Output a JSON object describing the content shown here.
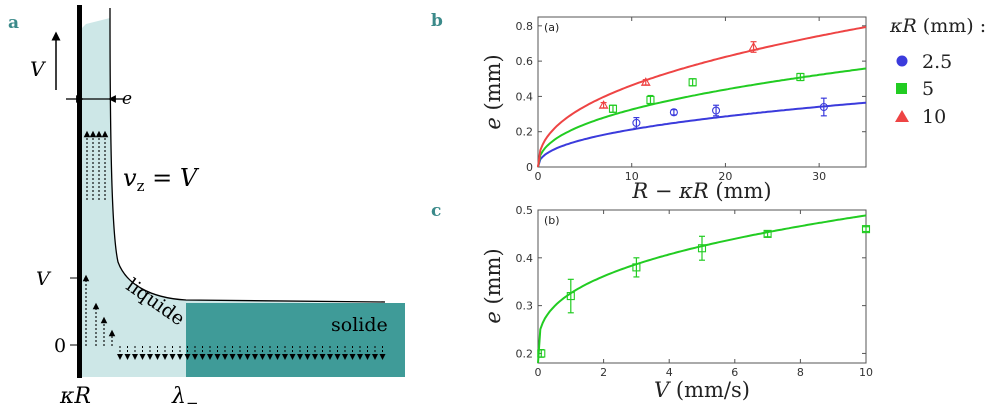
{
  "panel_labels": {
    "a": "a",
    "b": "b",
    "c": "c"
  },
  "schematic": {
    "velocity_label": "V",
    "thickness_label": "e",
    "vz_label": "v_z = V",
    "y_tick_v": "V",
    "y_tick_zero": "0",
    "liquid_label": "liquide",
    "solid_label": "solide",
    "x_label_kr": "κR",
    "x_label_lambda": "λ_−"
  },
  "legend": {
    "title": "κR (mm)  :",
    "items": [
      {
        "label": "2.5",
        "color": "#3b3bdc",
        "marker": "circle"
      },
      {
        "label": "5",
        "color": "#22cc22",
        "marker": "square"
      },
      {
        "label": "10",
        "color": "#ee4444",
        "marker": "triangle"
      }
    ]
  },
  "chart_data": [
    {
      "type": "scatter",
      "panel_tag": "(a)",
      "xlabel": "R − κR (mm)",
      "ylabel": "e (mm)",
      "xlim": [
        0,
        35
      ],
      "ylim": [
        0,
        0.85
      ],
      "xticks": [
        "0",
        "10",
        "20",
        "30"
      ],
      "yticks": [
        "0",
        "0.2",
        "0.4",
        "0.6",
        "0.8"
      ],
      "series": [
        {
          "name": "2.5",
          "color": "#3b3bdc",
          "marker": "circle",
          "points": [
            [
              10.5,
              0.25,
              0.03
            ],
            [
              14.5,
              0.31,
              0.015
            ],
            [
              19,
              0.32,
              0.03
            ],
            [
              30.5,
              0.34,
              0.05
            ]
          ],
          "fit_amp": 0.079
        },
        {
          "name": "5",
          "color": "#22cc22",
          "marker": "square",
          "points": [
            [
              8,
              0.33,
              0.02
            ],
            [
              12,
              0.38,
              0.025
            ],
            [
              16.5,
              0.48,
              0.02
            ],
            [
              28,
              0.51,
              0.02
            ]
          ],
          "fit_amp": 0.121
        },
        {
          "name": "10",
          "color": "#ee4444",
          "marker": "triangle",
          "points": [
            [
              7,
              0.35,
              0.015
            ],
            [
              11.5,
              0.48,
              0.015
            ],
            [
              23,
              0.68,
              0.03
            ]
          ],
          "fit_amp": 0.172
        }
      ]
    },
    {
      "type": "scatter",
      "panel_tag": "(b)",
      "xlabel": "V (mm/s)",
      "ylabel": "e (mm)",
      "xlim": [
        0,
        10
      ],
      "ylim": [
        0.18,
        0.5
      ],
      "xticks": [
        "0",
        "2",
        "4",
        "6",
        "8",
        "10"
      ],
      "yticks": [
        "0.2",
        "0.3",
        "0.4",
        "0.5"
      ],
      "series": [
        {
          "name": "5",
          "color": "#22cc22",
          "marker": "square",
          "points": [
            [
              0.1,
              0.2,
              0.008
            ],
            [
              1,
              0.32,
              0.035
            ],
            [
              3,
              0.38,
              0.02
            ],
            [
              5,
              0.42,
              0.025
            ],
            [
              7,
              0.45,
              0.006
            ],
            [
              10,
              0.46,
              0.005
            ]
          ]
        }
      ]
    }
  ]
}
